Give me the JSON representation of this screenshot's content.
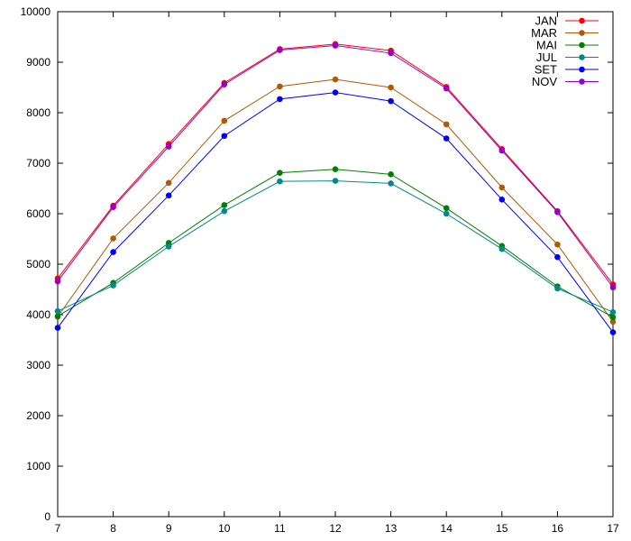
{
  "chart_data": {
    "type": "line",
    "x": [
      7,
      8,
      9,
      10,
      11,
      12,
      13,
      14,
      15,
      16,
      17
    ],
    "xlim": [
      7,
      17
    ],
    "ylim": [
      0,
      10000
    ],
    "x_ticks": [
      "7",
      "8",
      "9",
      "10",
      "11",
      "12",
      "13",
      "14",
      "15",
      "16",
      "17"
    ],
    "y_ticks": [
      "0",
      "1000",
      "2000",
      "3000",
      "4000",
      "5000",
      "6000",
      "7000",
      "8000",
      "9000",
      "10000"
    ],
    "grid": false,
    "legend_position": "top-right",
    "series": [
      {
        "name": "JAN",
        "color": "#ff0000",
        "values": [
          4720,
          6160,
          7380,
          8590,
          9260,
          9360,
          9230,
          8510,
          7280,
          6050,
          4600
        ]
      },
      {
        "name": "MAR",
        "color": "#b35900",
        "values": [
          3960,
          5510,
          6610,
          7840,
          8520,
          8660,
          8500,
          7770,
          6520,
          5390,
          3860
        ]
      },
      {
        "name": "MAI",
        "color": "#008000",
        "values": [
          3970,
          4630,
          5420,
          6170,
          6810,
          6880,
          6780,
          6110,
          5360,
          4560,
          3950
        ]
      },
      {
        "name": "JUL",
        "color": "#008b8b",
        "values": [
          4070,
          4580,
          5350,
          6050,
          6640,
          6650,
          6600,
          6000,
          5300,
          4520,
          4050
        ]
      },
      {
        "name": "SET",
        "color": "#0000ff",
        "values": [
          3740,
          5240,
          6360,
          7540,
          8270,
          8400,
          8230,
          7490,
          6280,
          5140,
          3650
        ]
      },
      {
        "name": "NOV",
        "color": "#9400d3",
        "values": [
          4660,
          6130,
          7330,
          8560,
          9240,
          9330,
          9180,
          8480,
          7250,
          6030,
          4540
        ]
      }
    ]
  }
}
